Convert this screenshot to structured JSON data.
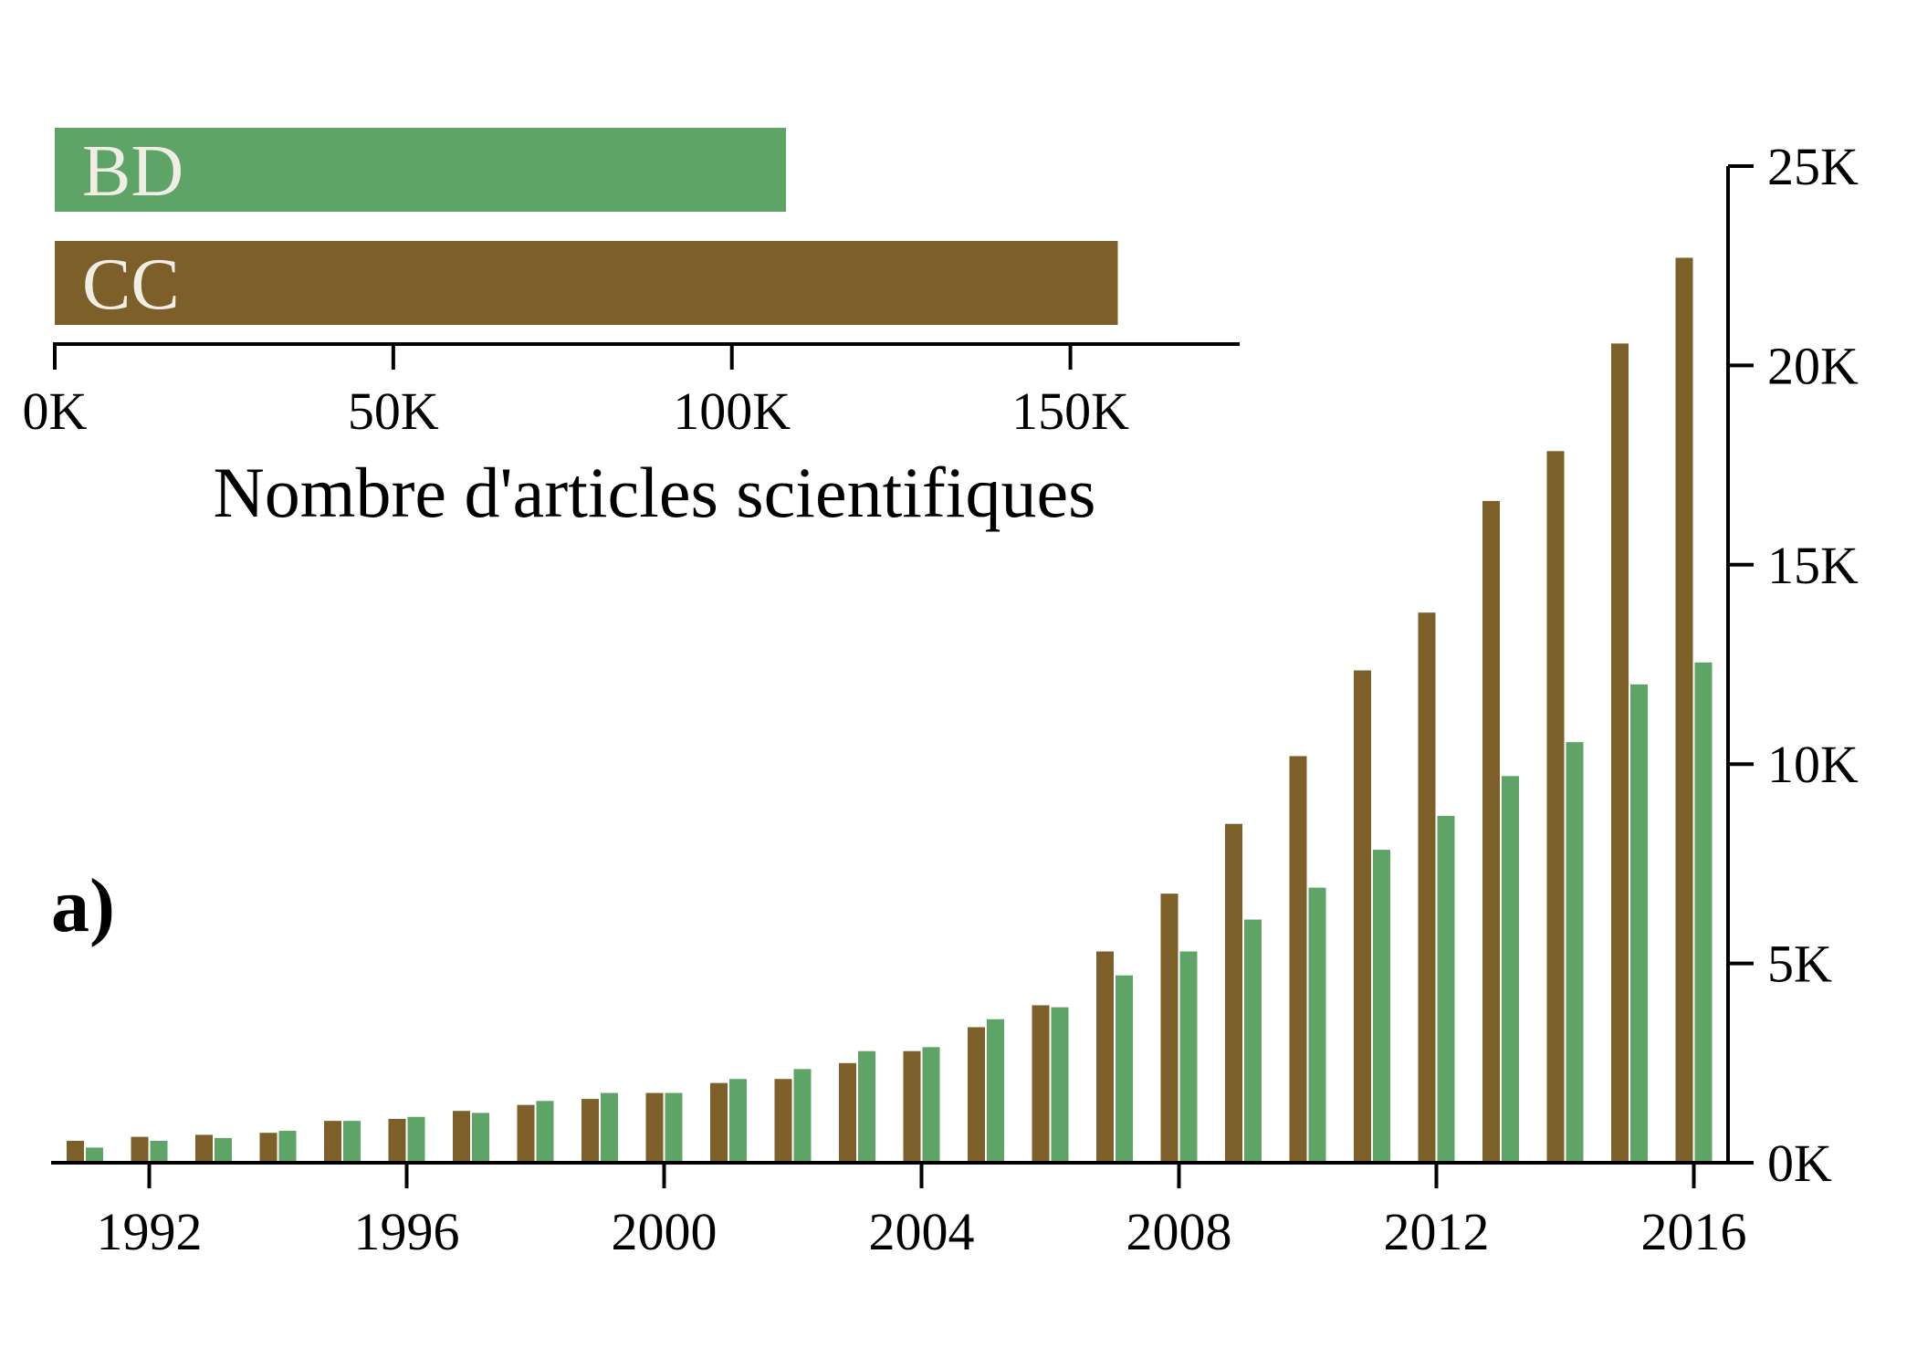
{
  "colors": {
    "CC": "#7d5f2a",
    "BD": "#5ea467",
    "axis": "#000000",
    "bar_label_text": "#f0ede4"
  },
  "panel_label": "a)",
  "chart_data": [
    {
      "type": "bar",
      "orientation": "horizontal",
      "categories": [
        "BD",
        "CC"
      ],
      "values": [
        108000,
        157000
      ],
      "xlabel": "Nombre d'articles scientifiques",
      "xlim": [
        0,
        175000
      ],
      "xticks": [
        0,
        50000,
        100000,
        150000
      ],
      "xtick_labels": [
        "0K",
        "50K",
        "100K",
        "150K"
      ],
      "grid": false
    },
    {
      "type": "bar",
      "orientation": "vertical",
      "x": [
        1991,
        1992,
        1993,
        1994,
        1995,
        1996,
        1997,
        1998,
        1999,
        2000,
        2001,
        2002,
        2003,
        2004,
        2005,
        2006,
        2007,
        2008,
        2009,
        2010,
        2011,
        2012,
        2013,
        2014,
        2015,
        2016
      ],
      "series": [
        {
          "name": "CC",
          "values": [
            550,
            650,
            700,
            750,
            1050,
            1100,
            1300,
            1450,
            1600,
            1750,
            2000,
            2100,
            2500,
            2800,
            3400,
            3950,
            5300,
            6750,
            8500,
            10200,
            12350,
            13800,
            16600,
            17850,
            20550,
            22700
          ]
        },
        {
          "name": "BD",
          "values": [
            380,
            550,
            620,
            800,
            1050,
            1150,
            1250,
            1550,
            1750,
            1750,
            2100,
            2350,
            2800,
            2900,
            3600,
            3900,
            4700,
            5300,
            6100,
            6900,
            7850,
            8700,
            9700,
            10550,
            12000,
            12550
          ]
        }
      ],
      "xticks": [
        1992,
        1996,
        2000,
        2004,
        2008,
        2012,
        2016
      ],
      "xtick_labels": [
        "1992",
        "1996",
        "2000",
        "2004",
        "2008",
        "2012",
        "2016"
      ],
      "ylim": [
        0,
        25000
      ],
      "yticks": [
        0,
        5000,
        10000,
        15000,
        20000,
        25000
      ],
      "ytick_labels": [
        "0K",
        "5K",
        "10K",
        "15K",
        "20K",
        "25K"
      ],
      "yaxis_side": "right",
      "grid": false
    }
  ]
}
